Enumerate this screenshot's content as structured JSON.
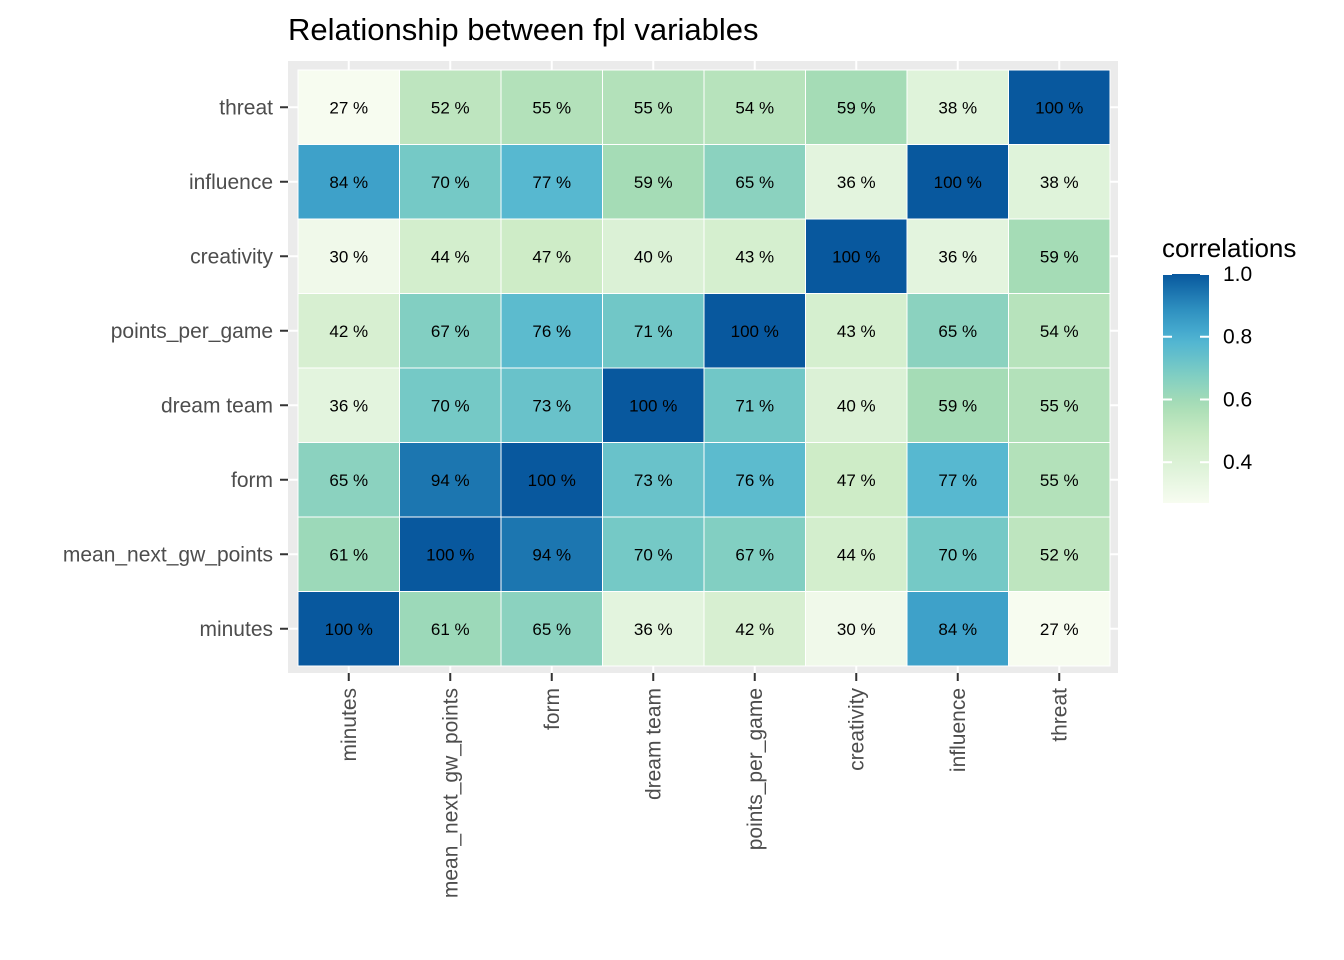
{
  "chart_data": {
    "type": "heatmap",
    "title": "Relationship between fpl variables",
    "variables": [
      "minutes",
      "mean_next_gw_points",
      "form",
      "dream team",
      "points_per_game",
      "creativity",
      "influence",
      "threat"
    ],
    "matrix": [
      [
        1.0,
        0.61,
        0.65,
        0.36,
        0.42,
        0.3,
        0.84,
        0.27
      ],
      [
        0.61,
        1.0,
        0.94,
        0.7,
        0.67,
        0.44,
        0.7,
        0.52
      ],
      [
        0.65,
        0.94,
        1.0,
        0.73,
        0.76,
        0.47,
        0.77,
        0.55
      ],
      [
        0.36,
        0.7,
        0.73,
        1.0,
        0.71,
        0.4,
        0.59,
        0.55
      ],
      [
        0.42,
        0.67,
        0.76,
        0.71,
        1.0,
        0.43,
        0.65,
        0.54
      ],
      [
        0.3,
        0.44,
        0.47,
        0.4,
        0.43,
        1.0,
        0.36,
        0.59
      ],
      [
        0.84,
        0.7,
        0.77,
        0.59,
        0.65,
        0.36,
        1.0,
        0.38
      ],
      [
        0.27,
        0.52,
        0.55,
        0.55,
        0.54,
        0.59,
        0.38,
        1.0
      ]
    ],
    "value_format": "percent",
    "legend": {
      "title": "correlations",
      "range": [
        0.27,
        1.0
      ],
      "ticks": [
        0.4,
        0.6,
        0.8,
        1.0
      ],
      "tick_labels": [
        "0.4",
        "0.6",
        "0.8",
        "1.0"
      ],
      "placement": "right"
    },
    "colors": [
      "#f7fcf0",
      "#e0f3db",
      "#ccebc5",
      "#a8ddb5",
      "#7bccc4",
      "#4eb3d3",
      "#2b8cbe",
      "#08589e"
    ],
    "panel_background": "#ebebeb",
    "grid": true
  }
}
